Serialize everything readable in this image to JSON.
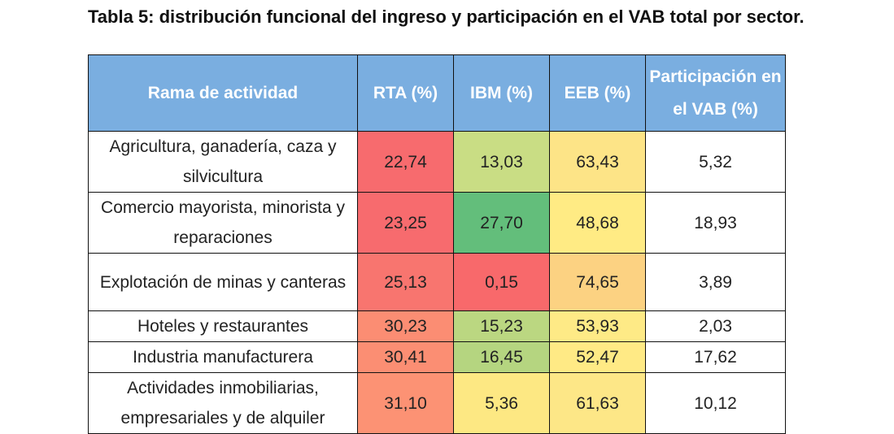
{
  "caption": "Tabla 5: distribución funcional del ingreso y participación en el VAB total por sector.",
  "columns": {
    "rama": "Rama de actividad",
    "rta": "RTA (%)",
    "ibm": "IBM (%)",
    "eeb": "EEB (%)",
    "vab": "Participación en el VAB (%)"
  },
  "rows": [
    {
      "rama": "Agricultura, ganadería, caza y silvicultura",
      "rta": "22,74",
      "ibm": "13,03",
      "eeb": "63,43",
      "vab": "5,32",
      "rta_color": "#f76b6e",
      "ibm_color": "#c9dd84",
      "eeb_color": "#fde487"
    },
    {
      "rama": "Comercio mayorista, minorista y reparaciones",
      "rta": "23,25",
      "ibm": "27,70",
      "eeb": "48,68",
      "vab": "18,93",
      "rta_color": "#f76b6e",
      "ibm_color": "#63be7b",
      "eeb_color": "#ffeb84"
    },
    {
      "rama": "Explotación de minas y canteras",
      "rta": "25,13",
      "ibm": "0,15",
      "eeb": "74,65",
      "vab": "3,89",
      "rta_color": "#f8756f",
      "ibm_color": "#f8696b",
      "eeb_color": "#fcd282"
    },
    {
      "rama": "Hoteles y restaurantes",
      "rta": "30,23",
      "ibm": "15,23",
      "eeb": "53,93",
      "vab": "2,03",
      "rta_color": "#fb8d73",
      "ibm_color": "#bbd781",
      "eeb_color": "#feea86"
    },
    {
      "rama": "Industria manufacturera",
      "rta": "30,41",
      "ibm": "16,45",
      "eeb": "52,47",
      "vab": "17,62",
      "rta_color": "#fb8e73",
      "ibm_color": "#b5d580",
      "eeb_color": "#ffea85"
    },
    {
      "rama": "Actividades inmobiliarias, empresariales y de alquiler",
      "rta": "31,10",
      "ibm": "5,36",
      "eeb": "61,63",
      "vab": "10,12",
      "rta_color": "#fc9274",
      "ibm_color": "#fde883",
      "eeb_color": "#fde787"
    }
  ]
}
